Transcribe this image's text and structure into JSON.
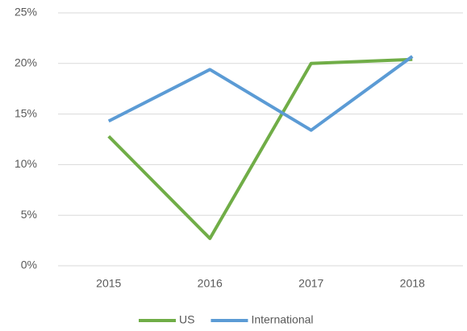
{
  "chart_data": {
    "type": "line",
    "categories": [
      "2015",
      "2016",
      "2017",
      "2018"
    ],
    "series": [
      {
        "name": "US",
        "color": "#70ad47",
        "values": [
          12.8,
          2.7,
          20.0,
          20.4
        ]
      },
      {
        "name": "International",
        "color": "#5b9bd5",
        "values": [
          14.3,
          19.4,
          13.4,
          20.7
        ]
      }
    ],
    "ylim": [
      0,
      25
    ],
    "yticks": [
      {
        "value": 0,
        "label": "0%"
      },
      {
        "value": 5,
        "label": "5%"
      },
      {
        "value": 10,
        "label": "10%"
      },
      {
        "value": 15,
        "label": "15%"
      },
      {
        "value": 20,
        "label": "20%"
      },
      {
        "value": 25,
        "label": "25%"
      }
    ],
    "grid": true,
    "legend": "bottom"
  }
}
